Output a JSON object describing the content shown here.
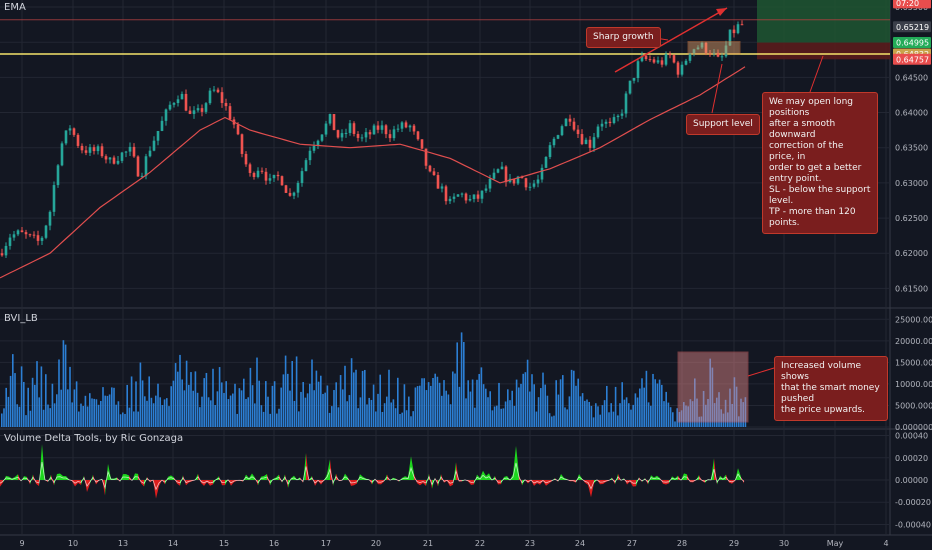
{
  "main_pane": {
    "title": "EMA"
  },
  "bvi_pane": {
    "title": "BVI_LB"
  },
  "delta_pane": {
    "title": "Volume Delta Tools, by Ric Gonzaga"
  },
  "annotations": {
    "sharp_growth": "Sharp growth",
    "support_level": "Support level",
    "long_idea": [
      "We may open long positions",
      "after a smooth downward",
      "correction of the price, in",
      "order to get a better entry point.",
      "SL - below the support level.",
      "TP - more than 120 points."
    ],
    "volume_note": [
      "Increased volume shows",
      "that the smart money pushed",
      "the price upwards."
    ]
  },
  "price_badges": [
    {
      "label": "07:20",
      "color": "#e84d4d"
    },
    {
      "label": "0.65219",
      "color": "#3b3f4a"
    },
    {
      "label": "0.64995",
      "color": "#22ab58"
    },
    {
      "label": "0.64832",
      "color": "#c9a34a"
    },
    {
      "label": "0.64757",
      "color": "#e84d4d"
    }
  ],
  "colors": {
    "background": "#131722",
    "grid": "#232733",
    "up": "#26a69a",
    "down": "#ef5350",
    "ema": "#e04e4e",
    "volume": "#2c7fd4",
    "delta_up": "#1ee01e",
    "delta_down": "#e81f1f",
    "support": "#f5e36a",
    "tp_zone": "#1e5631",
    "sl_zone": "#5a1c1c"
  },
  "chart_data": [
    {
      "type": "candlestick",
      "title": "EMA",
      "y_ticks": [
        "0.65500",
        "0.65000",
        "0.64500",
        "0.64000",
        "0.63500",
        "0.63000",
        "0.62500",
        "0.62000",
        "0.61500"
      ],
      "ylim": [
        0.6125,
        0.656
      ],
      "x_ticks": [
        "9",
        "10",
        "13",
        "14",
        "15",
        "16",
        "17",
        "20",
        "21",
        "22",
        "23",
        "24",
        "27",
        "28",
        "29",
        "30",
        "May",
        "4"
      ],
      "close_path": {
        "x": [
          0,
          10,
          20,
          40,
          50,
          60,
          70,
          80,
          90,
          100,
          110,
          120,
          130,
          140,
          150,
          160,
          170,
          180,
          190,
          200,
          210,
          215,
          225,
          235,
          240,
          250,
          260,
          270,
          280,
          290,
          300,
          310,
          320,
          330,
          340,
          350,
          360,
          370,
          380,
          390,
          400,
          410,
          420,
          430,
          440,
          450,
          460,
          470,
          480,
          490,
          500,
          510,
          520,
          530,
          540,
          550,
          560,
          570,
          580,
          590,
          600,
          610,
          620,
          630,
          640,
          650,
          660,
          670,
          680,
          690,
          700,
          710,
          720,
          730,
          740
        ],
        "y": [
          0.62,
          0.6225,
          0.6228,
          0.6215,
          0.626,
          0.635,
          0.638,
          0.635,
          0.6345,
          0.6345,
          0.633,
          0.634,
          0.6345,
          0.631,
          0.635,
          0.638,
          0.641,
          0.643,
          0.6395,
          0.64,
          0.6425,
          0.6432,
          0.641,
          0.638,
          0.635,
          0.631,
          0.6325,
          0.63,
          0.631,
          0.628,
          0.631,
          0.635,
          0.637,
          0.639,
          0.636,
          0.638,
          0.636,
          0.637,
          0.638,
          0.637,
          0.638,
          0.638,
          0.635,
          0.631,
          0.6295,
          0.627,
          0.6285,
          0.6275,
          0.628,
          0.63,
          0.632,
          0.63,
          0.631,
          0.6295,
          0.6305,
          0.635,
          0.638,
          0.6395,
          0.6365,
          0.6355,
          0.639,
          0.638,
          0.6395,
          0.644,
          0.6475,
          0.6475,
          0.647,
          0.648,
          0.6455,
          0.649,
          0.6495,
          0.6488,
          0.647,
          0.651,
          0.6525
        ]
      },
      "ema_path": {
        "x": [
          0,
          50,
          100,
          150,
          200,
          225,
          250,
          300,
          350,
          400,
          450,
          500,
          550,
          600,
          650,
          700,
          745
        ],
        "y": [
          0.6165,
          0.62,
          0.6265,
          0.6315,
          0.6375,
          0.6393,
          0.6375,
          0.6355,
          0.635,
          0.6355,
          0.6335,
          0.63,
          0.632,
          0.635,
          0.639,
          0.6425,
          0.6465
        ]
      },
      "support_level": 0.64832,
      "tp_zone": [
        0.64995,
        0.656
      ],
      "sl_zone": [
        0.64757,
        0.64995
      ]
    },
    {
      "type": "bar",
      "title": "BVI_LB",
      "y_ticks": [
        "25000.000000",
        "20000.000000",
        "15000.000000",
        "10000.000000",
        "5000.000000",
        "0.000000"
      ],
      "ylim": [
        0,
        26000
      ],
      "envelope": {
        "x": [
          0,
          15,
          25,
          35,
          50,
          65,
          80,
          100,
          120,
          140,
          160,
          180,
          200,
          215,
          230,
          250,
          270,
          290,
          300,
          310,
          330,
          350,
          370,
          390,
          410,
          430,
          450,
          460,
          470,
          490,
          510,
          530,
          550,
          570,
          590,
          610,
          630,
          650,
          660,
          670,
          680,
          690,
          700,
          710,
          720,
          730,
          740,
          745
        ],
        "y": [
          12000,
          20000,
          8000,
          17000,
          9000,
          22000,
          7000,
          13000,
          8000,
          15000,
          9000,
          17000,
          10000,
          16000,
          8000,
          18000,
          9000,
          20000,
          12000,
          21000,
          8000,
          16000,
          11000,
          14000,
          8000,
          18000,
          9000,
          24000,
          10000,
          15000,
          8000,
          16000,
          9000,
          13000,
          7000,
          11000,
          9000,
          13000,
          14000,
          5000,
          4000,
          15000,
          8000,
          16000,
          9000,
          14000,
          8000,
          11000
        ]
      }
    },
    {
      "type": "area",
      "title": "Volume Delta Tools, by Ric Gonzaga",
      "y_ticks": [
        "0.00040",
        "0.00020",
        "0.00000",
        "-0.00020",
        "-0.00040"
      ],
      "ylim": [
        -0.00045,
        0.00045
      ]
    }
  ]
}
